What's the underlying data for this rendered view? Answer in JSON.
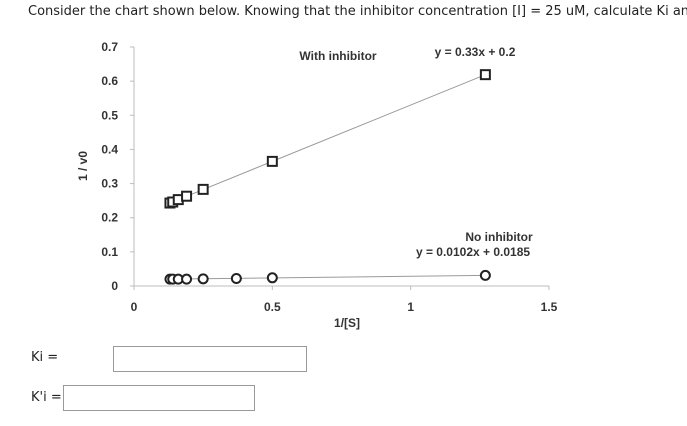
{
  "question": {
    "text": "Consider the chart shown below. Knowing that the inhibitor concentration [I]  = 25 uM, calculate Ki and K'i."
  },
  "answers": {
    "ki_label": "Ki =",
    "kpi_label": "K'i =",
    "ki_value": "",
    "kpi_value": ""
  },
  "chart_data": {
    "type": "scatter",
    "title": "",
    "xlabel": "1/[S]",
    "ylabel": "1 / v0",
    "xlim": [
      0,
      1.5
    ],
    "ylim": [
      0,
      0.7
    ],
    "x_ticks": [
      "0",
      "0.5",
      "1",
      "1.5"
    ],
    "y_ticks": [
      "0",
      "0.1",
      "0.2",
      "0.3",
      "0.4",
      "0.5",
      "0.6",
      "0.7"
    ],
    "grid": false,
    "line_color": "#9a9a9a",
    "marker_color": "#222222",
    "series": [
      {
        "name": "With inhibitor",
        "equation": "y = 0.33x + 0.2",
        "marker": "square",
        "x": [
          0.13,
          0.14,
          0.16,
          0.19,
          0.25,
          0.5,
          1.27
        ],
        "y": [
          0.243,
          0.246,
          0.253,
          0.263,
          0.283,
          0.365,
          0.619
        ]
      },
      {
        "name": "No inhibitor",
        "equation": "y = 0.0102x + 0.0185",
        "marker": "circle",
        "x": [
          0.13,
          0.14,
          0.16,
          0.19,
          0.25,
          0.37,
          0.5,
          1.27
        ],
        "y": [
          0.02,
          0.02,
          0.02,
          0.02,
          0.021,
          0.022,
          0.024,
          0.031
        ]
      }
    ]
  }
}
